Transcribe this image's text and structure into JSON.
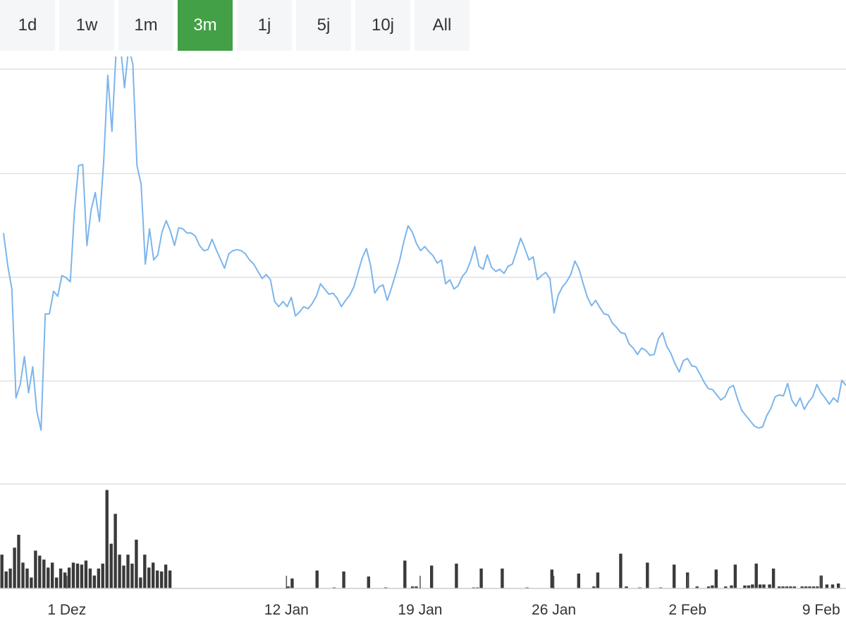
{
  "range_buttons": [
    {
      "label": "1d",
      "active": false
    },
    {
      "label": "1w",
      "active": false
    },
    {
      "label": "1m",
      "active": false
    },
    {
      "label": "3m",
      "active": true
    },
    {
      "label": "1j",
      "active": false
    },
    {
      "label": "5j",
      "active": false
    },
    {
      "label": "10j",
      "active": false
    },
    {
      "label": "All",
      "active": false
    }
  ],
  "colors": {
    "active_button": "#43a047",
    "line": "#7cb5ec",
    "volume_bar": "#3a3a3a",
    "grid": "#e0e0e0",
    "axis": "#cccccc"
  },
  "chart_data": {
    "type": "line",
    "title": "",
    "xlabel": "",
    "ylabel": "",
    "grid": true,
    "y_axis_labels_visible": false,
    "x_tick_labels": [
      "1 Dez",
      "12 Jan",
      "19 Jan",
      "26 Jan",
      "2 Feb",
      "9 Feb"
    ],
    "x_tick_positions": [
      15.5,
      27,
      34,
      41,
      48,
      55
    ],
    "x_range": [
      12,
      56.3
    ],
    "ylim": [
      0,
      4
    ],
    "price_series": {
      "values": [
        2.42,
        2.11,
        1.88,
        0.83,
        0.96,
        1.23,
        0.88,
        1.13,
        0.7,
        0.52,
        1.64,
        1.64,
        1.86,
        1.81,
        2.01,
        1.99,
        1.95,
        2.63,
        3.07,
        3.08,
        2.3,
        2.64,
        2.81,
        2.53,
        3.1,
        3.94,
        3.4,
        4.18,
        4.25,
        3.82,
        4.21,
        4.05,
        3.07,
        2.89,
        2.12,
        2.46,
        2.16,
        2.21,
        2.43,
        2.54,
        2.44,
        2.3,
        2.47,
        2.46,
        2.42,
        2.42,
        2.39,
        2.3,
        2.25,
        2.26,
        2.36,
        2.26,
        2.17,
        2.08,
        2.22,
        2.25,
        2.26,
        2.25,
        2.22,
        2.16,
        2.12,
        2.05,
        1.98,
        2.02,
        1.97,
        1.76,
        1.71,
        1.76,
        1.71,
        1.8,
        1.62,
        1.66,
        1.71,
        1.69,
        1.74,
        1.81,
        1.93,
        1.88,
        1.83,
        1.84,
        1.79,
        1.71,
        1.77,
        1.82,
        1.9,
        2.04,
        2.18,
        2.27,
        2.11,
        1.84,
        1.9,
        1.92,
        1.77,
        1.89,
        2.02,
        2.16,
        2.34,
        2.49,
        2.43,
        2.32,
        2.25,
        2.29,
        2.24,
        2.2,
        2.13,
        2.16,
        1.93,
        1.97,
        1.88,
        1.91,
        2.0,
        2.05,
        2.15,
        2.29,
        2.1,
        2.07,
        2.21,
        2.09,
        2.05,
        2.07,
        2.03,
        2.1,
        2.12,
        2.24,
        2.37,
        2.27,
        2.16,
        2.19,
        1.97,
        2.01,
        2.04,
        1.98,
        1.65,
        1.82,
        1.9,
        1.95,
        2.02,
        2.15,
        2.07,
        1.93,
        1.8,
        1.72,
        1.77,
        1.7,
        1.64,
        1.63,
        1.55,
        1.51,
        1.46,
        1.45,
        1.35,
        1.31,
        1.25,
        1.31,
        1.29,
        1.24,
        1.25,
        1.4,
        1.46,
        1.33,
        1.26,
        1.16,
        1.08,
        1.19,
        1.21,
        1.14,
        1.13,
        1.06,
        0.98,
        0.92,
        0.91,
        0.86,
        0.81,
        0.84,
        0.93,
        0.95,
        0.82,
        0.71,
        0.66,
        0.61,
        0.56,
        0.54,
        0.55,
        0.66,
        0.73,
        0.84,
        0.86,
        0.85,
        0.97,
        0.81,
        0.75,
        0.83,
        0.72,
        0.79,
        0.84,
        0.96,
        0.88,
        0.83,
        0.77,
        0.83,
        0.79,
        1.0,
        0.95
      ]
    },
    "volume_series": {
      "bars": [
        [
          12.1,
          0.34
        ],
        [
          12.32,
          0.17
        ],
        [
          12.54,
          0.2
        ],
        [
          12.76,
          0.41
        ],
        [
          12.98,
          0.54
        ],
        [
          13.2,
          0.26
        ],
        [
          13.42,
          0.2
        ],
        [
          13.64,
          0.11
        ],
        [
          13.86,
          0.38
        ],
        [
          14.08,
          0.33
        ],
        [
          14.3,
          0.29
        ],
        [
          14.52,
          0.21
        ],
        [
          14.74,
          0.26
        ],
        [
          14.96,
          0.11
        ],
        [
          15.18,
          0.2
        ],
        [
          15.4,
          0.16
        ],
        [
          15.62,
          0.21
        ],
        [
          15.84,
          0.26
        ],
        [
          16.06,
          0.25
        ],
        [
          16.28,
          0.24
        ],
        [
          16.5,
          0.28
        ],
        [
          16.72,
          0.2
        ],
        [
          16.94,
          0.13
        ],
        [
          17.16,
          0.2
        ],
        [
          17.38,
          0.25
        ],
        [
          17.6,
          0.99
        ],
        [
          17.82,
          0.45
        ],
        [
          18.04,
          0.75
        ],
        [
          18.26,
          0.34
        ],
        [
          18.48,
          0.23
        ],
        [
          18.7,
          0.34
        ],
        [
          18.92,
          0.25
        ],
        [
          19.14,
          0.49
        ],
        [
          19.36,
          0.11
        ],
        [
          19.58,
          0.34
        ],
        [
          19.8,
          0.21
        ],
        [
          20.02,
          0.26
        ],
        [
          20.24,
          0.18
        ],
        [
          20.46,
          0.17
        ],
        [
          20.68,
          0.24
        ],
        [
          20.9,
          0.18
        ],
        [
          27.1,
          0.02
        ],
        [
          27.3,
          0.1
        ],
        [
          28.6,
          0.18
        ],
        [
          29.5,
          0.01
        ],
        [
          30.0,
          0.17
        ],
        [
          31.3,
          0.12
        ],
        [
          32.2,
          0.01
        ],
        [
          33.2,
          0.28
        ],
        [
          33.6,
          0.02
        ],
        [
          33.8,
          0.02
        ],
        [
          34.6,
          0.23
        ],
        [
          35.9,
          0.25
        ],
        [
          36.8,
          0.01
        ],
        [
          37.0,
          0.01
        ],
        [
          37.2,
          0.2
        ],
        [
          38.3,
          0.2
        ],
        [
          39.6,
          0.01
        ],
        [
          40.9,
          0.19
        ],
        [
          42.3,
          0.15
        ],
        [
          43.1,
          0.02
        ],
        [
          43.3,
          0.16
        ],
        [
          44.5,
          0.35
        ],
        [
          44.8,
          0.02
        ],
        [
          45.5,
          0.01
        ],
        [
          45.9,
          0.26
        ],
        [
          46.6,
          0.01
        ],
        [
          47.3,
          0.24
        ],
        [
          48.0,
          0.16
        ],
        [
          48.5,
          0.02
        ],
        [
          49.1,
          0.02
        ],
        [
          49.3,
          0.03
        ],
        [
          49.5,
          0.19
        ],
        [
          50.0,
          0.02
        ],
        [
          50.3,
          0.03
        ],
        [
          50.5,
          0.24
        ],
        [
          51.0,
          0.03
        ],
        [
          51.2,
          0.03
        ],
        [
          51.4,
          0.04
        ],
        [
          51.6,
          0.25
        ],
        [
          51.8,
          0.04
        ],
        [
          52.0,
          0.04
        ],
        [
          52.3,
          0.04
        ],
        [
          52.5,
          0.2
        ],
        [
          52.8,
          0.02
        ],
        [
          53.0,
          0.02
        ],
        [
          53.2,
          0.02
        ],
        [
          53.4,
          0.02
        ],
        [
          53.6,
          0.02
        ],
        [
          54.0,
          0.02
        ],
        [
          54.2,
          0.02
        ],
        [
          54.4,
          0.02
        ],
        [
          54.6,
          0.02
        ],
        [
          54.8,
          0.02
        ],
        [
          55.0,
          0.13
        ],
        [
          55.3,
          0.04
        ],
        [
          55.6,
          0.04
        ],
        [
          55.9,
          0.05
        ]
      ],
      "ylim": [
        0,
        1.05
      ]
    }
  }
}
